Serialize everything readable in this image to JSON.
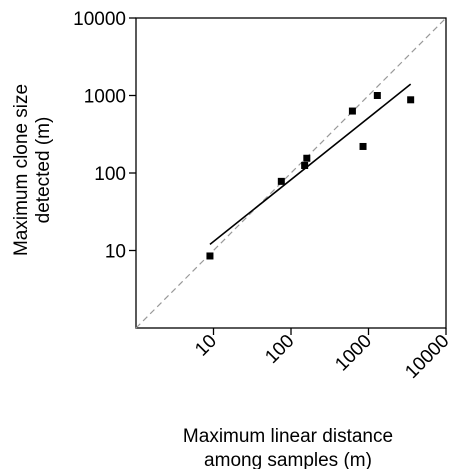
{
  "chart_data": {
    "type": "scatter",
    "scale": "log-log",
    "xlabel_lines": [
      "Maximum linear distance",
      "among samples (m)"
    ],
    "ylabel_lines": [
      "Maximum clone size",
      "detected  (m)"
    ],
    "xlim": [
      1,
      10000
    ],
    "ylim": [
      1,
      10000
    ],
    "x_ticks": [
      10,
      100,
      1000,
      10000
    ],
    "x_tick_labels": [
      "10",
      "100",
      "1000",
      "10000"
    ],
    "y_ticks": [
      10,
      100,
      1000,
      10000
    ],
    "y_tick_labels": [
      "10",
      "100",
      "1000",
      "10000"
    ],
    "grid": false,
    "points": [
      {
        "x": 9,
        "y": 8.5
      },
      {
        "x": 75,
        "y": 78
      },
      {
        "x": 150,
        "y": 125
      },
      {
        "x": 160,
        "y": 155
      },
      {
        "x": 620,
        "y": 630
      },
      {
        "x": 850,
        "y": 220
      },
      {
        "x": 1300,
        "y": 1000
      },
      {
        "x": 3500,
        "y": 880
      }
    ],
    "fit_line": {
      "x": [
        9,
        3500
      ],
      "y": [
        12,
        1400
      ]
    },
    "identity_line": {
      "x": [
        1,
        10000
      ],
      "y": [
        1,
        10000
      ]
    },
    "colors": {
      "points": "#000000",
      "fit": "#000000",
      "identity": "#999999"
    }
  }
}
